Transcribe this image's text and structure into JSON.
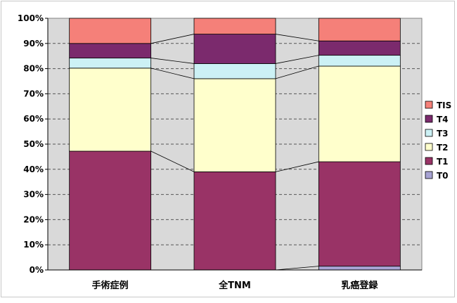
{
  "chart_data": {
    "type": "bar",
    "stacked": true,
    "percent": true,
    "categories": [
      "手術症例",
      "全TNM",
      "乳癌登録"
    ],
    "series": [
      {
        "name": "T0",
        "values": [
          0.0,
          0.0,
          1.5
        ],
        "color": "#a7a3d3"
      },
      {
        "name": "T1",
        "values": [
          47.2,
          39.0,
          41.5
        ],
        "color": "#993366"
      },
      {
        "name": "T2",
        "values": [
          33.0,
          37.0,
          38.0
        ],
        "color": "#ffffcc"
      },
      {
        "name": "T3",
        "values": [
          4.0,
          6.0,
          4.3
        ],
        "color": "#ccf1f5"
      },
      {
        "name": "T4",
        "values": [
          5.8,
          11.7,
          5.7
        ],
        "color": "#7b2a6d"
      },
      {
        "name": "TIS",
        "values": [
          10.0,
          6.3,
          9.0
        ],
        "color": "#f58079"
      }
    ],
    "y_ticks": [
      "0%",
      "10%",
      "20%",
      "30%",
      "40%",
      "50%",
      "60%",
      "70%",
      "80%",
      "90%",
      "100%"
    ],
    "ylim": [
      0,
      100
    ],
    "grid": true,
    "legend_position": "right",
    "plot_background": "#d9d9d9"
  }
}
